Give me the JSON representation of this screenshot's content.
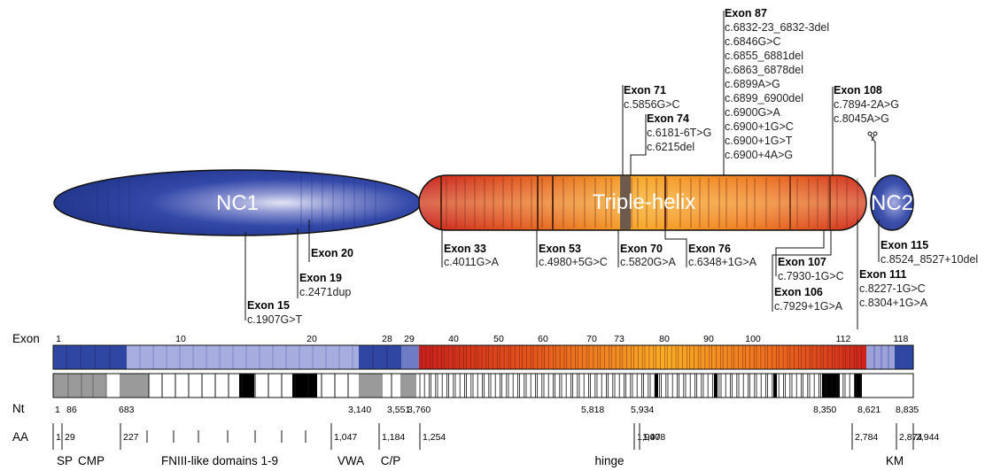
{
  "domains": {
    "nc1": "NC1",
    "triple_helix": "Triple-helix",
    "nc2": "NC2"
  },
  "mutations": [
    {
      "exon": "Exon 87",
      "variants": [
        "c.6832-23_6832-3del",
        "c.6846G>C",
        "c.6855_6881del",
        "c.6863_6878del",
        "c.6899A>G",
        "c.6899_6900del",
        "c.6900G>A",
        "c.6900+1G>C",
        "c.6900+1G>T",
        "c.6900+4A>G"
      ]
    },
    {
      "exon": "Exon 71",
      "variants": [
        "c.5856G>C"
      ]
    },
    {
      "exon": "Exon 74",
      "variants": [
        "c.6181-6T>G",
        "c.6215del"
      ]
    },
    {
      "exon": "Exon 108",
      "variants": [
        "c.7894-2A>G",
        "c.8045A>G"
      ]
    },
    {
      "exon": "Exon 20",
      "variants": []
    },
    {
      "exon": "Exon 19",
      "variants": [
        "c.2471dup"
      ]
    },
    {
      "exon": "Exon 15",
      "variants": [
        "c.1907G>T"
      ]
    },
    {
      "exon": "Exon 33",
      "variants": [
        "c.4011G>A"
      ]
    },
    {
      "exon": "Exon 53",
      "variants": [
        "c.4980+5G>C"
      ]
    },
    {
      "exon": "Exon 70",
      "variants": [
        "c.5820G>A"
      ]
    },
    {
      "exon": "Exon 76",
      "variants": [
        "c.6348+1G>A"
      ]
    },
    {
      "exon": "Exon 107",
      "variants": [
        "c.7930-1G>C"
      ]
    },
    {
      "exon": "Exon 106",
      "variants": [
        "c.7929+1G>A"
      ]
    },
    {
      "exon": "Exon 111",
      "variants": [
        "c.8227-1G>C",
        "c.8304+1G>A"
      ]
    },
    {
      "exon": "Exon 115",
      "variants": [
        "c.8524_8527+10del"
      ]
    }
  ],
  "scale": {
    "exon_label": "Exon",
    "exon_ticks": [
      "1",
      "10",
      "20",
      "28",
      "29",
      "40",
      "50",
      "60",
      "70",
      "73",
      "80",
      "90",
      "100",
      "112",
      "118"
    ],
    "nt_label": "Nt",
    "nt_ticks": [
      "1",
      "86",
      "683",
      "3,140",
      "3,551",
      "3,760",
      "5,818",
      "5,934",
      "8,350",
      "8,621",
      "8,835"
    ],
    "aa_label": "AA",
    "aa_ticks": [
      "1",
      "29",
      "227",
      "1,047",
      "1,184",
      "1,254",
      "1,940",
      "1,978",
      "2,784",
      "2,874",
      "2,944"
    ],
    "domains": [
      "SP",
      "CMP",
      "FNIII-like domains 1-9",
      "VWA",
      "C/P",
      "hinge",
      "KM"
    ]
  },
  "colors": {
    "nc_blue": "#2b44a0",
    "nc_light": "#9aa2d8",
    "helix_red": "#d02a20",
    "helix_orange": "#f5a020",
    "hinge_black": "#000000",
    "grey": "#999999"
  }
}
